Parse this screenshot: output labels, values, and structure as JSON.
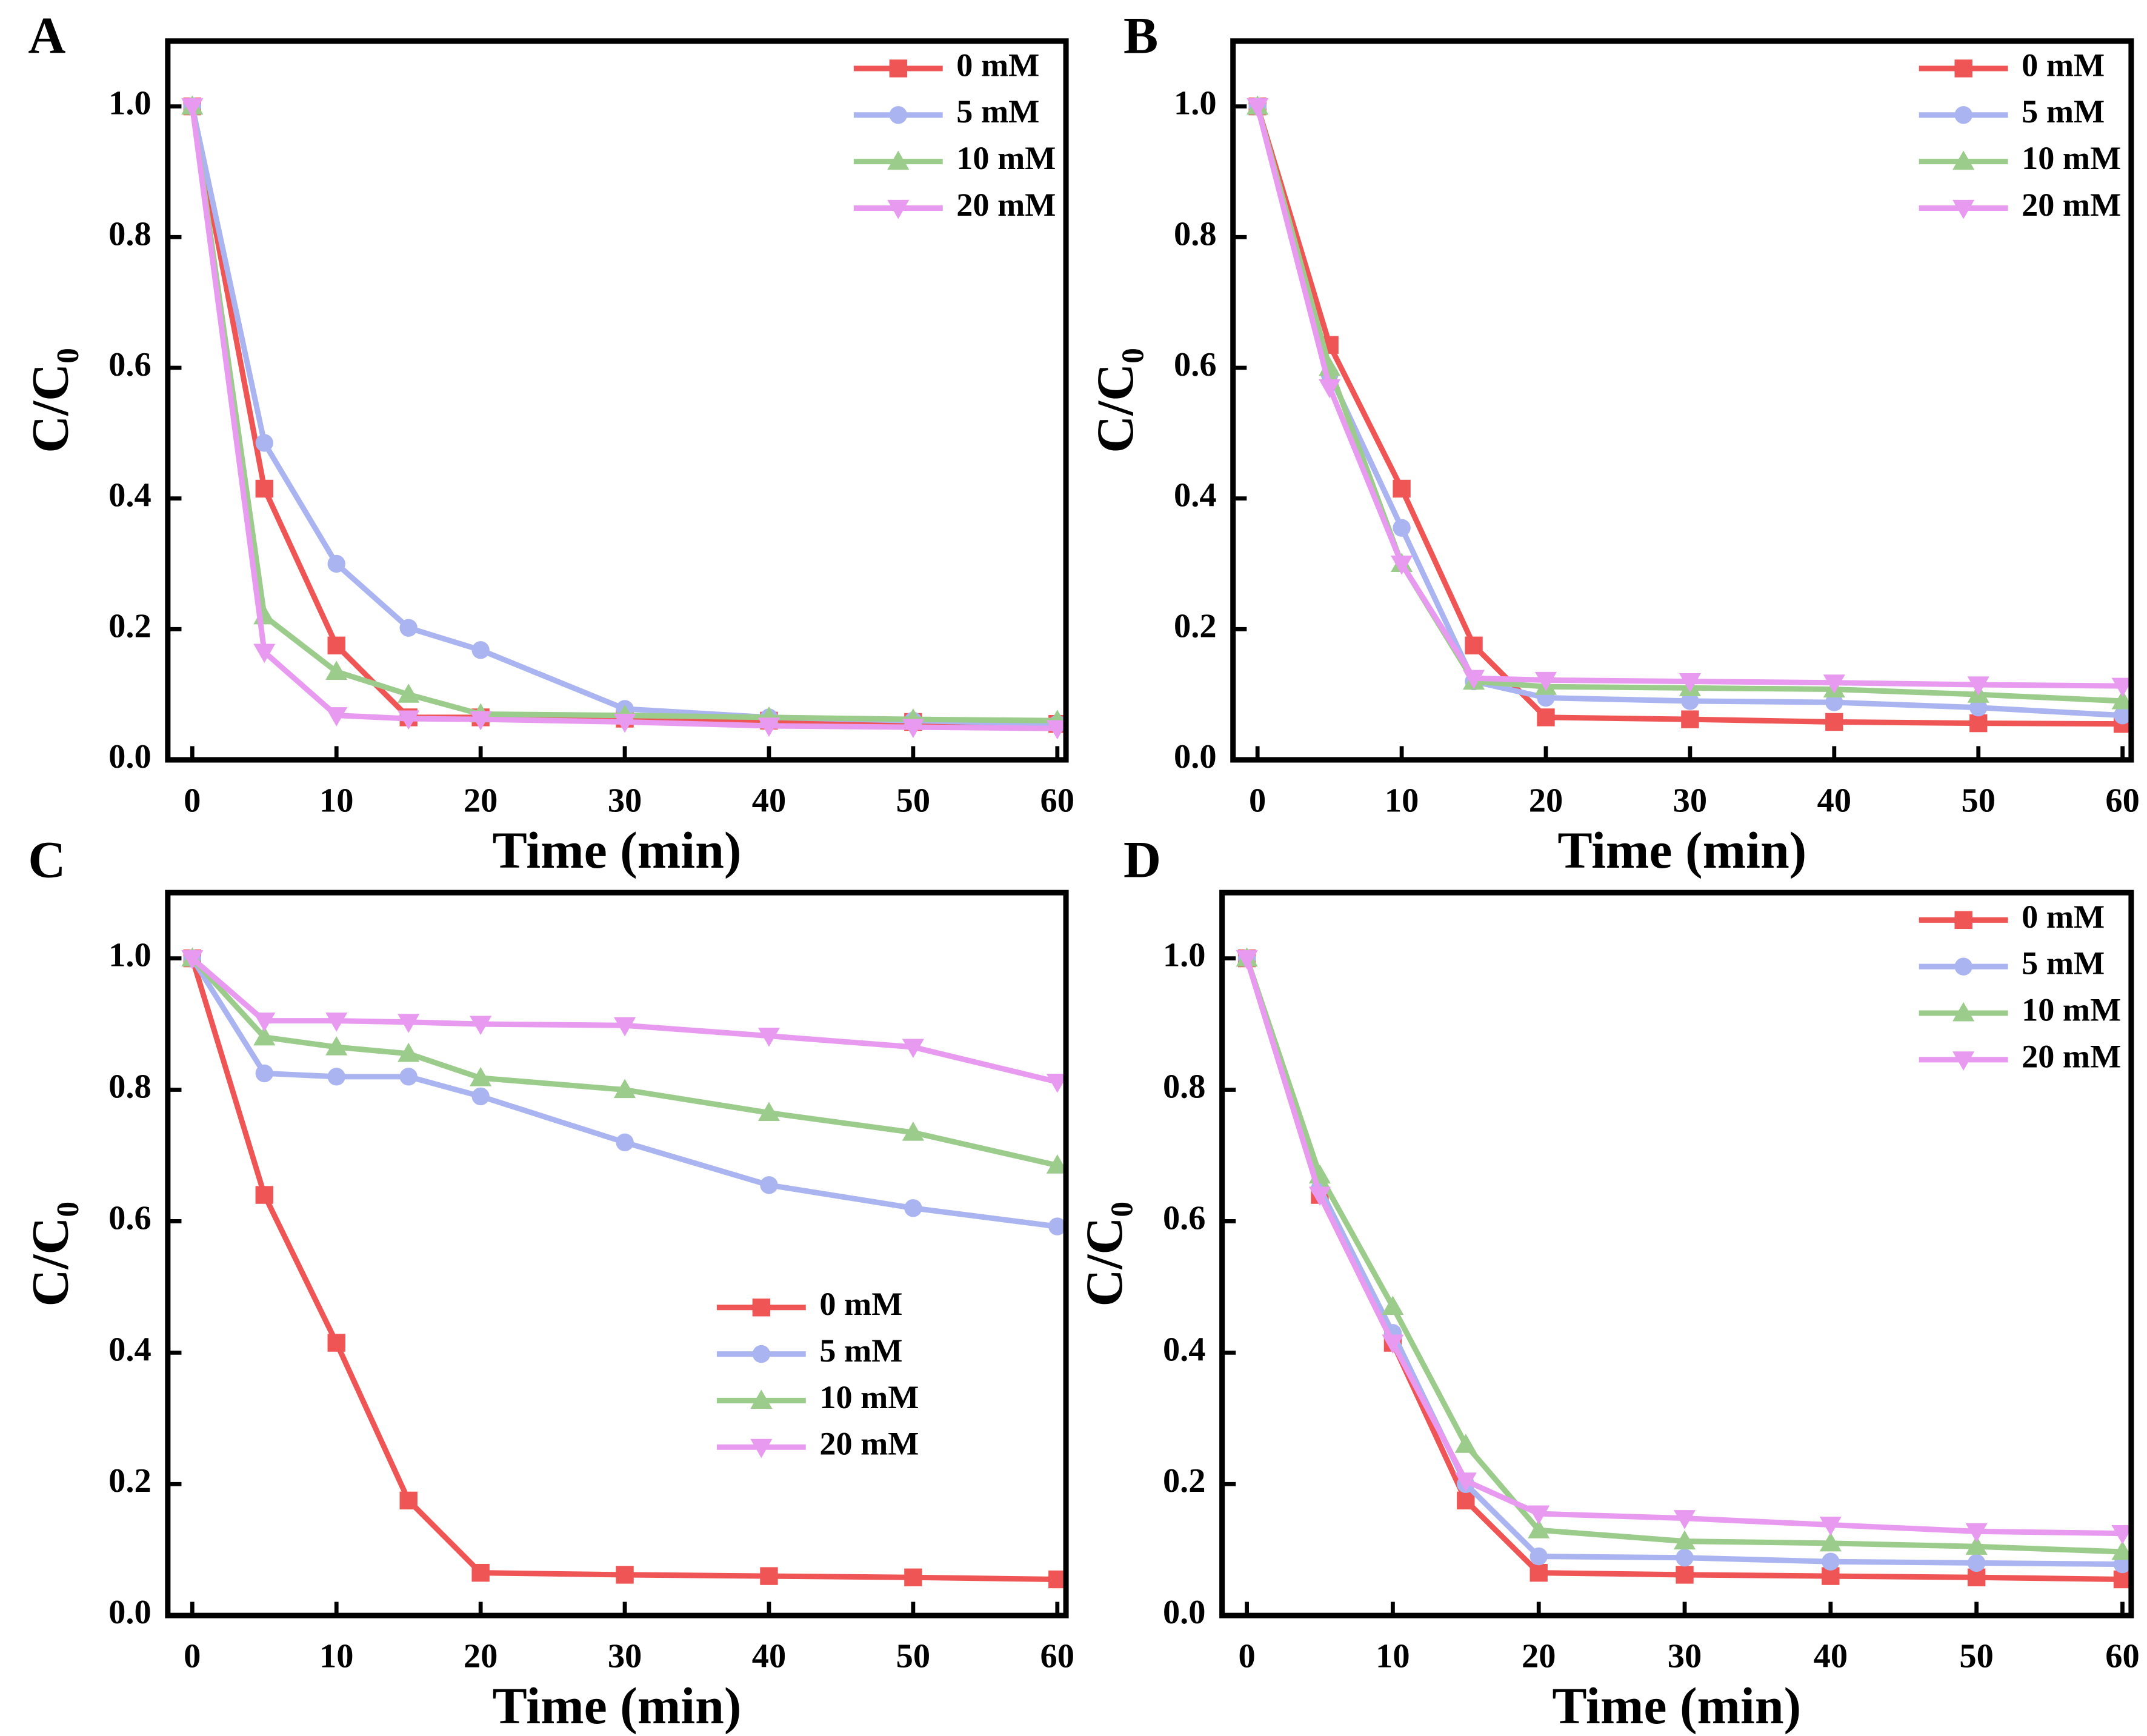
{
  "chart_data": [
    {
      "type": "line",
      "panel_label": "A",
      "xlabel": "Time (min)",
      "ylabel": "C/C₀",
      "x": [
        0,
        5,
        10,
        15,
        20,
        30,
        40,
        50,
        60
      ],
      "xlim": [
        -1.7,
        60.6
      ],
      "xticks": [
        0,
        10,
        20,
        30,
        40,
        50,
        60
      ],
      "ylim": [
        0,
        1.1
      ],
      "yticks": [
        {
          "value": 0,
          "label": "0.0"
        },
        0.2,
        0.4,
        0.6,
        0.8,
        {
          "value": 1,
          "label": "1.0"
        }
      ],
      "legend": "upper right",
      "series": [
        {
          "name": "0 mM",
          "color": "#f05555",
          "marker": "square",
          "values": [
            1,
            0.415,
            0.175,
            0.065,
            0.065,
            0.063,
            0.06,
            0.058,
            0.055
          ]
        },
        {
          "name": "5 mM",
          "color": "#aab4f0",
          "marker": "circle",
          "values": [
            1,
            0.485,
            0.3,
            0.202,
            0.168,
            0.078,
            0.065,
            0.06,
            0.055
          ]
        },
        {
          "name": "10 mM",
          "color": "#9ccc8c",
          "marker": "triangle-up",
          "values": [
            1,
            0.22,
            0.135,
            0.1,
            0.07,
            0.068,
            0.065,
            0.062,
            0.06
          ]
        },
        {
          "name": "20 mM",
          "color": "#e89af0",
          "marker": "triangle-down",
          "values": [
            1,
            0.165,
            0.068,
            0.063,
            0.062,
            0.058,
            0.052,
            0.05,
            0.048
          ]
        }
      ]
    },
    {
      "type": "line",
      "panel_label": "B",
      "xlabel": "Time (min)",
      "ylabel": "C/C₀",
      "x": [
        0,
        5,
        10,
        15,
        20,
        30,
        40,
        50,
        60
      ],
      "xlim": [
        -1.7,
        60.6
      ],
      "xticks": [
        0,
        10,
        20,
        30,
        40,
        50,
        60
      ],
      "ylim": [
        0,
        1.1
      ],
      "yticks": [
        {
          "value": 0,
          "label": "0.0"
        },
        0.2,
        0.4,
        0.6,
        0.8,
        {
          "value": 1,
          "label": "1.0"
        }
      ],
      "legend": "upper right",
      "series": [
        {
          "name": "0 mM",
          "color": "#f05555",
          "marker": "square",
          "values": [
            1,
            0.635,
            0.415,
            0.175,
            0.065,
            0.062,
            0.058,
            0.056,
            0.055
          ]
        },
        {
          "name": "5 mM",
          "color": "#aab4f0",
          "marker": "circle",
          "values": [
            1,
            0.59,
            0.355,
            0.12,
            0.095,
            0.09,
            0.088,
            0.08,
            0.068
          ]
        },
        {
          "name": "10 mM",
          "color": "#9ccc8c",
          "marker": "triangle-up",
          "values": [
            1,
            0.6,
            0.3,
            0.12,
            0.112,
            0.11,
            0.108,
            0.1,
            0.09
          ]
        },
        {
          "name": "20 mM",
          "color": "#e89af0",
          "marker": "triangle-down",
          "values": [
            1,
            0.57,
            0.3,
            0.125,
            0.122,
            0.12,
            0.118,
            0.115,
            0.113
          ]
        }
      ]
    },
    {
      "type": "line",
      "panel_label": "C",
      "xlabel": "Time (min)",
      "ylabel": "C/C₀",
      "x": [
        0,
        5,
        10,
        15,
        20,
        30,
        40,
        50,
        60
      ],
      "xlim": [
        -1.7,
        60.6
      ],
      "xticks": [
        0,
        10,
        20,
        30,
        40,
        50,
        60
      ],
      "ylim": [
        0,
        1.1
      ],
      "yticks": [
        {
          "value": 0,
          "label": "0.0"
        },
        0.2,
        0.4,
        0.6,
        0.8,
        {
          "value": 1,
          "label": "1.0"
        }
      ],
      "legend": "lower right",
      "series": [
        {
          "name": "0 mM",
          "color": "#f05555",
          "marker": "square",
          "values": [
            1,
            0.64,
            0.415,
            0.175,
            0.065,
            0.062,
            0.06,
            0.058,
            0.055
          ]
        },
        {
          "name": "5 mM",
          "color": "#aab4f0",
          "marker": "circle",
          "values": [
            1,
            0.825,
            0.82,
            0.82,
            0.79,
            0.72,
            0.655,
            0.62,
            0.592
          ]
        },
        {
          "name": "10 mM",
          "color": "#9ccc8c",
          "marker": "triangle-up",
          "values": [
            1,
            0.88,
            0.865,
            0.855,
            0.818,
            0.8,
            0.765,
            0.735,
            0.685
          ]
        },
        {
          "name": "20 mM",
          "color": "#e89af0",
          "marker": "triangle-down",
          "values": [
            1,
            0.905,
            0.905,
            0.903,
            0.9,
            0.898,
            0.882,
            0.865,
            0.812
          ]
        }
      ]
    },
    {
      "type": "line",
      "panel_label": "D",
      "xlabel": "Time (min)",
      "ylabel": "C/C₀",
      "x": [
        0,
        5,
        10,
        15,
        20,
        30,
        40,
        50,
        60
      ],
      "xlim": [
        -1.7,
        60.6
      ],
      "xticks": [
        0,
        10,
        20,
        30,
        40,
        50,
        60
      ],
      "ylim": [
        0,
        1.1
      ],
      "yticks": [
        {
          "value": 0,
          "label": "0.0"
        },
        0.2,
        0.4,
        0.6,
        0.8,
        {
          "value": 1,
          "label": "1.0"
        }
      ],
      "legend": "upper right",
      "series": [
        {
          "name": "0 mM",
          "color": "#f05555",
          "marker": "square",
          "values": [
            1,
            0.64,
            0.415,
            0.175,
            0.065,
            0.062,
            0.06,
            0.058,
            0.055
          ]
        },
        {
          "name": "5 mM",
          "color": "#aab4f0",
          "marker": "circle",
          "values": [
            1,
            0.65,
            0.43,
            0.2,
            0.09,
            0.088,
            0.082,
            0.08,
            0.078
          ]
        },
        {
          "name": "10 mM",
          "color": "#9ccc8c",
          "marker": "triangle-up",
          "values": [
            1,
            0.67,
            0.47,
            0.26,
            0.13,
            0.113,
            0.11,
            0.105,
            0.097
          ]
        },
        {
          "name": "20 mM",
          "color": "#e89af0",
          "marker": "triangle-down",
          "values": [
            1,
            0.64,
            0.415,
            0.205,
            0.155,
            0.148,
            0.138,
            0.128,
            0.125
          ]
        }
      ]
    }
  ]
}
